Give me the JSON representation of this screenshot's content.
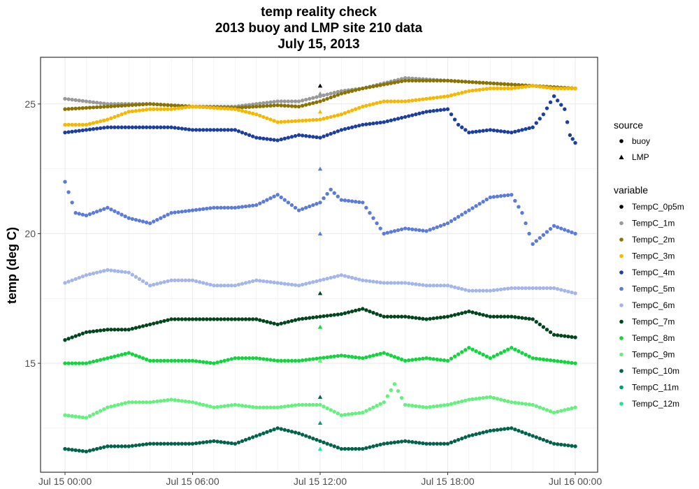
{
  "chart_data": {
    "type": "scatter",
    "title_lines": [
      "temp reality check",
      "2013 buoy and LMP site 210 data",
      "July 15, 2013"
    ],
    "xlabel": "",
    "ylabel": "temp (deg C)",
    "x_ticks": [
      "Jul 15 00:00",
      "Jul 15 06:00",
      "Jul 15 12:00",
      "Jul 15 18:00",
      "Jul 16 00:00"
    ],
    "x_range": [
      "2013-07-15 00:00",
      "2013-07-16 00:00"
    ],
    "ylim": [
      10.8,
      26.8
    ],
    "y_ticks": [
      15,
      20,
      25
    ],
    "grid": true,
    "legend_position": "right",
    "legend": {
      "shape_title": "source",
      "shapes": [
        {
          "name": "buoy",
          "shape": "circle"
        },
        {
          "name": "LMP",
          "shape": "triangle"
        }
      ],
      "color_title": "variable",
      "variables": [
        {
          "name": "TempC_0p5m",
          "color": "#000000"
        },
        {
          "name": "TempC_1m",
          "color": "#999999"
        },
        {
          "name": "TempC_2m",
          "color": "#8B7300"
        },
        {
          "name": "TempC_3m",
          "color": "#F5B700"
        },
        {
          "name": "TempC_4m",
          "color": "#1A3FA0"
        },
        {
          "name": "TempC_5m",
          "color": "#5B7BDB"
        },
        {
          "name": "TempC_6m",
          "color": "#A4B5EA"
        },
        {
          "name": "TempC_7m",
          "color": "#00461C"
        },
        {
          "name": "TempC_8m",
          "color": "#12D43C"
        },
        {
          "name": "TempC_9m",
          "color": "#63F07C"
        },
        {
          "name": "TempC_10m",
          "color": "#00634A"
        },
        {
          "name": "TempC_11m",
          "color": "#009E6E"
        },
        {
          "name": "TempC_12m",
          "color": "#1BE596"
        }
      ]
    },
    "buoy_series": [
      {
        "name": "TempC_1m",
        "points": [
          [
            "00:00",
            25.2
          ],
          [
            "02:00",
            25.0
          ],
          [
            "04:00",
            25.0
          ],
          [
            "06:00",
            24.9
          ],
          [
            "08:00",
            24.9
          ],
          [
            "10:00",
            25.1
          ],
          [
            "11:00",
            25.1
          ],
          [
            "12:00",
            25.3
          ],
          [
            "13:00",
            25.5
          ],
          [
            "14:00",
            25.6
          ],
          [
            "16:00",
            26.0
          ],
          [
            "18:00",
            25.9
          ],
          [
            "20:00",
            25.8
          ],
          [
            "22:00",
            25.7
          ],
          [
            "24:00",
            25.6
          ]
        ]
      },
      {
        "name": "TempC_2m",
        "points": [
          [
            "00:00",
            24.8
          ],
          [
            "02:00",
            24.9
          ],
          [
            "04:00",
            25.0
          ],
          [
            "06:00",
            24.9
          ],
          [
            "08:00",
            24.85
          ],
          [
            "10:00",
            24.95
          ],
          [
            "11:00",
            24.9
          ],
          [
            "12:00",
            25.1
          ],
          [
            "13:00",
            25.4
          ],
          [
            "14:00",
            25.6
          ],
          [
            "16:00",
            25.9
          ],
          [
            "18:00",
            25.9
          ],
          [
            "20:00",
            25.8
          ],
          [
            "22:00",
            25.7
          ],
          [
            "24:00",
            25.6
          ]
        ]
      },
      {
        "name": "TempC_3m",
        "points": [
          [
            "00:00",
            24.2
          ],
          [
            "01:00",
            24.2
          ],
          [
            "02:00",
            24.4
          ],
          [
            "03:00",
            24.7
          ],
          [
            "04:00",
            24.8
          ],
          [
            "05:00",
            24.8
          ],
          [
            "06:00",
            24.9
          ],
          [
            "08:00",
            24.8
          ],
          [
            "09:00",
            24.6
          ],
          [
            "10:00",
            24.3
          ],
          [
            "12:00",
            24.4
          ],
          [
            "13:00",
            24.6
          ],
          [
            "14:00",
            24.9
          ],
          [
            "15:00",
            25.1
          ],
          [
            "16:00",
            25.1
          ],
          [
            "17:00",
            25.2
          ],
          [
            "18:00",
            25.3
          ],
          [
            "19:00",
            25.5
          ],
          [
            "20:00",
            25.6
          ],
          [
            "21:00",
            25.6
          ],
          [
            "22:00",
            25.7
          ],
          [
            "23:00",
            25.6
          ],
          [
            "24:00",
            25.6
          ]
        ]
      },
      {
        "name": "TempC_4m",
        "points": [
          [
            "00:00",
            23.9
          ],
          [
            "01:00",
            24.0
          ],
          [
            "02:00",
            24.1
          ],
          [
            "03:00",
            24.1
          ],
          [
            "04:00",
            24.1
          ],
          [
            "05:00",
            24.1
          ],
          [
            "06:00",
            24.0
          ],
          [
            "07:00",
            24.0
          ],
          [
            "08:00",
            24.0
          ],
          [
            "09:00",
            23.7
          ],
          [
            "10:00",
            23.6
          ],
          [
            "11:00",
            23.8
          ],
          [
            "12:00",
            23.7
          ],
          [
            "13:00",
            24.0
          ],
          [
            "14:00",
            24.2
          ],
          [
            "15:00",
            24.3
          ],
          [
            "16:00",
            24.5
          ],
          [
            "17:00",
            24.7
          ],
          [
            "18:00",
            24.8
          ],
          [
            "18:30",
            24.2
          ],
          [
            "19:00",
            23.9
          ],
          [
            "20:00",
            24.0
          ],
          [
            "21:00",
            23.9
          ],
          [
            "22:00",
            24.1
          ],
          [
            "22:30",
            24.6
          ],
          [
            "23:00",
            25.3
          ],
          [
            "23:30",
            24.8
          ],
          [
            "23:45",
            23.8
          ],
          [
            "24:00",
            23.5
          ]
        ]
      },
      {
        "name": "TempC_5m",
        "points": [
          [
            "00:00",
            22.0
          ],
          [
            "00:30",
            20.8
          ],
          [
            "01:00",
            20.7
          ],
          [
            "02:00",
            21.0
          ],
          [
            "03:00",
            20.6
          ],
          [
            "04:00",
            20.4
          ],
          [
            "05:00",
            20.8
          ],
          [
            "06:00",
            20.9
          ],
          [
            "07:00",
            21.0
          ],
          [
            "08:00",
            21.0
          ],
          [
            "09:00",
            21.1
          ],
          [
            "10:00",
            21.5
          ],
          [
            "11:00",
            20.9
          ],
          [
            "12:00",
            21.2
          ],
          [
            "12:30",
            21.7
          ],
          [
            "13:00",
            21.3
          ],
          [
            "14:00",
            21.2
          ],
          [
            "15:00",
            20.0
          ],
          [
            "16:00",
            20.2
          ],
          [
            "17:00",
            20.1
          ],
          [
            "18:00",
            20.4
          ],
          [
            "19:00",
            20.9
          ],
          [
            "20:00",
            21.4
          ],
          [
            "21:00",
            21.5
          ],
          [
            "21:30",
            20.8
          ],
          [
            "22:00",
            19.6
          ],
          [
            "23:00",
            20.3
          ],
          [
            "24:00",
            20.0
          ]
        ]
      },
      {
        "name": "TempC_6m",
        "points": [
          [
            "00:00",
            18.1
          ],
          [
            "01:00",
            18.4
          ],
          [
            "02:00",
            18.6
          ],
          [
            "03:00",
            18.5
          ],
          [
            "04:00",
            18.0
          ],
          [
            "05:00",
            18.2
          ],
          [
            "06:00",
            18.2
          ],
          [
            "07:00",
            18.0
          ],
          [
            "08:00",
            18.0
          ],
          [
            "09:00",
            18.2
          ],
          [
            "10:00",
            18.1
          ],
          [
            "11:00",
            18.0
          ],
          [
            "12:00",
            18.2
          ],
          [
            "13:00",
            18.4
          ],
          [
            "14:00",
            18.2
          ],
          [
            "15:00",
            18.1
          ],
          [
            "16:00",
            18.1
          ],
          [
            "17:00",
            18.0
          ],
          [
            "18:00",
            18.0
          ],
          [
            "19:00",
            17.8
          ],
          [
            "20:00",
            17.8
          ],
          [
            "21:00",
            17.9
          ],
          [
            "22:00",
            17.9
          ],
          [
            "23:00",
            17.9
          ],
          [
            "24:00",
            17.7
          ]
        ]
      },
      {
        "name": "TempC_7m",
        "points": [
          [
            "00:00",
            15.9
          ],
          [
            "01:00",
            16.2
          ],
          [
            "02:00",
            16.3
          ],
          [
            "03:00",
            16.3
          ],
          [
            "04:00",
            16.5
          ],
          [
            "05:00",
            16.7
          ],
          [
            "06:00",
            16.7
          ],
          [
            "07:00",
            16.7
          ],
          [
            "08:00",
            16.7
          ],
          [
            "09:00",
            16.7
          ],
          [
            "10:00",
            16.5
          ],
          [
            "11:00",
            16.7
          ],
          [
            "12:00",
            16.8
          ],
          [
            "13:00",
            16.9
          ],
          [
            "14:00",
            17.1
          ],
          [
            "15:00",
            16.8
          ],
          [
            "16:00",
            16.8
          ],
          [
            "17:00",
            16.7
          ],
          [
            "18:00",
            16.8
          ],
          [
            "19:00",
            17.0
          ],
          [
            "20:00",
            16.8
          ],
          [
            "21:00",
            16.8
          ],
          [
            "22:00",
            16.7
          ],
          [
            "23:00",
            16.1
          ],
          [
            "24:00",
            16.0
          ]
        ]
      },
      {
        "name": "TempC_8m",
        "points": [
          [
            "00:00",
            15.0
          ],
          [
            "01:00",
            15.0
          ],
          [
            "02:00",
            15.2
          ],
          [
            "03:00",
            15.4
          ],
          [
            "04:00",
            15.1
          ],
          [
            "05:00",
            15.1
          ],
          [
            "06:00",
            15.1
          ],
          [
            "07:00",
            15.0
          ],
          [
            "08:00",
            15.2
          ],
          [
            "09:00",
            15.2
          ],
          [
            "10:00",
            15.1
          ],
          [
            "11:00",
            15.1
          ],
          [
            "12:00",
            15.2
          ],
          [
            "13:00",
            15.3
          ],
          [
            "14:00",
            15.2
          ],
          [
            "15:00",
            15.4
          ],
          [
            "16:00",
            15.1
          ],
          [
            "17:00",
            15.2
          ],
          [
            "18:00",
            15.1
          ],
          [
            "19:00",
            15.6
          ],
          [
            "20:00",
            15.2
          ],
          [
            "21:00",
            15.6
          ],
          [
            "22:00",
            15.2
          ],
          [
            "23:00",
            15.1
          ],
          [
            "24:00",
            15.0
          ]
        ]
      },
      {
        "name": "TempC_9m",
        "points": [
          [
            "00:00",
            13.0
          ],
          [
            "01:00",
            12.9
          ],
          [
            "02:00",
            13.3
          ],
          [
            "03:00",
            13.5
          ],
          [
            "04:00",
            13.5
          ],
          [
            "05:00",
            13.6
          ],
          [
            "06:00",
            13.5
          ],
          [
            "07:00",
            13.3
          ],
          [
            "08:00",
            13.4
          ],
          [
            "09:00",
            13.3
          ],
          [
            "10:00",
            13.3
          ],
          [
            "11:00",
            13.4
          ],
          [
            "12:00",
            13.4
          ],
          [
            "13:00",
            13.0
          ],
          [
            "14:00",
            13.1
          ],
          [
            "15:00",
            13.5
          ],
          [
            "15:30",
            14.2
          ],
          [
            "16:00",
            13.4
          ],
          [
            "17:00",
            13.3
          ],
          [
            "18:00",
            13.4
          ],
          [
            "19:00",
            13.6
          ],
          [
            "20:00",
            13.7
          ],
          [
            "21:00",
            13.5
          ],
          [
            "22:00",
            13.4
          ],
          [
            "23:00",
            13.1
          ],
          [
            "24:00",
            13.3
          ]
        ]
      },
      {
        "name": "TempC_10m",
        "points": [
          [
            "00:00",
            11.7
          ],
          [
            "01:00",
            11.6
          ],
          [
            "02:00",
            11.8
          ],
          [
            "03:00",
            11.8
          ],
          [
            "04:00",
            11.9
          ],
          [
            "05:00",
            11.9
          ],
          [
            "06:00",
            11.9
          ],
          [
            "07:00",
            12.0
          ],
          [
            "08:00",
            11.9
          ],
          [
            "09:00",
            12.2
          ],
          [
            "10:00",
            12.5
          ],
          [
            "11:00",
            12.3
          ],
          [
            "12:00",
            12.0
          ],
          [
            "13:00",
            11.7
          ],
          [
            "14:00",
            11.7
          ],
          [
            "15:00",
            11.9
          ],
          [
            "16:00",
            12.0
          ],
          [
            "17:00",
            11.9
          ],
          [
            "18:00",
            11.9
          ],
          [
            "19:00",
            12.2
          ],
          [
            "20:00",
            12.4
          ],
          [
            "21:00",
            12.5
          ],
          [
            "22:00",
            12.2
          ],
          [
            "23:00",
            11.9
          ],
          [
            "24:00",
            11.8
          ]
        ]
      }
    ],
    "lmp_points": [
      {
        "variable": "TempC_0p5m",
        "x": "12:00",
        "y": 25.7
      },
      {
        "variable": "TempC_1m",
        "x": "12:00",
        "y": 25.4
      },
      {
        "variable": "TempC_3m",
        "x": "12:00",
        "y": 24.7
      },
      {
        "variable": "TempC_5m",
        "x": "12:00",
        "y": 22.5
      },
      {
        "variable": "TempC_5m",
        "x": "12:00",
        "y": 20.0
      },
      {
        "variable": "TempC_7m",
        "x": "12:00",
        "y": 17.7
      },
      {
        "variable": "TempC_8m",
        "x": "12:00",
        "y": 16.4
      },
      {
        "variable": "TempC_9m",
        "x": "12:00",
        "y": 15.1
      },
      {
        "variable": "TempC_10m",
        "x": "12:00",
        "y": 13.7
      },
      {
        "variable": "TempC_11m",
        "x": "12:00",
        "y": 12.7
      },
      {
        "variable": "TempC_12m",
        "x": "12:00",
        "y": 11.7
      }
    ]
  }
}
